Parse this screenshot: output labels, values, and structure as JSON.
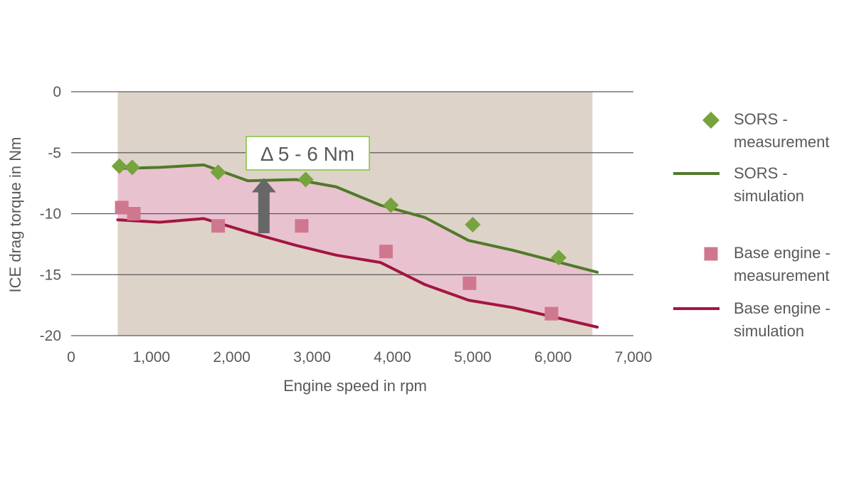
{
  "chart_data": {
    "type": "line",
    "xlabel": "Engine speed in rpm",
    "ylabel": "ICE drag torque in Nm",
    "xlim": [
      0,
      7000
    ],
    "ylim": [
      -20,
      0
    ],
    "x_ticks": [
      "0",
      "1,000",
      "2,000",
      "3,000",
      "4,000",
      "5,000",
      "6,000",
      "7,000"
    ],
    "y_ticks": [
      "0",
      "-5",
      "-10",
      "-15",
      "-20"
    ],
    "grid": "horizontal",
    "legend_position": "right",
    "background_region": {
      "x_range": [
        580,
        6490
      ],
      "color": "#ddd3c9"
    },
    "band_color": "#e9c2d0",
    "series": [
      {
        "name": "SORS - measurement",
        "legend_lines": [
          "SORS -",
          "measurement"
        ],
        "kind": "scatter",
        "marker": "diamond",
        "color": "#76a33d",
        "x": [
          600,
          760,
          1830,
          2920,
          3980,
          5000,
          6070
        ],
        "y": [
          -6.1,
          -6.2,
          -6.6,
          -7.2,
          -9.3,
          -10.9,
          -13.6
        ]
      },
      {
        "name": "SORS - simulation",
        "legend_lines": [
          "SORS -",
          "simulation"
        ],
        "kind": "line",
        "color": "#507a29",
        "x": [
          580,
          1100,
          1650,
          2200,
          2800,
          3300,
          3850,
          4400,
          4950,
          5500,
          6550
        ],
        "y": [
          -6.3,
          -6.2,
          -6.0,
          -7.3,
          -7.2,
          -7.8,
          -9.3,
          -10.3,
          -12.2,
          -13.0,
          -14.8
        ]
      },
      {
        "name": "Base engine - measurement",
        "legend_lines": [
          "Base engine -",
          "measurement"
        ],
        "kind": "scatter",
        "marker": "square",
        "color": "#d07790",
        "x": [
          630,
          780,
          1830,
          2870,
          3920,
          4960,
          5980
        ],
        "y": [
          -9.5,
          -10.0,
          -11.0,
          -11.0,
          -13.1,
          -15.7,
          -18.2
        ]
      },
      {
        "name": "Base engine - simulation",
        "legend_lines": [
          "Base engine -",
          "simulation"
        ],
        "kind": "line",
        "color": "#a3153f",
        "x": [
          580,
          1100,
          1650,
          2200,
          2800,
          3300,
          3850,
          4400,
          4950,
          5500,
          6550
        ],
        "y": [
          -10.5,
          -10.7,
          -10.4,
          -11.5,
          -12.6,
          -13.4,
          -14.0,
          -15.8,
          -17.1,
          -17.7,
          -19.3
        ]
      }
    ],
    "annotations": [
      {
        "text": "Δ 5 - 6 Nm",
        "arrow_x": 2400,
        "arrow_from_y": -11.6,
        "arrow_to_y": -7.2
      }
    ]
  }
}
